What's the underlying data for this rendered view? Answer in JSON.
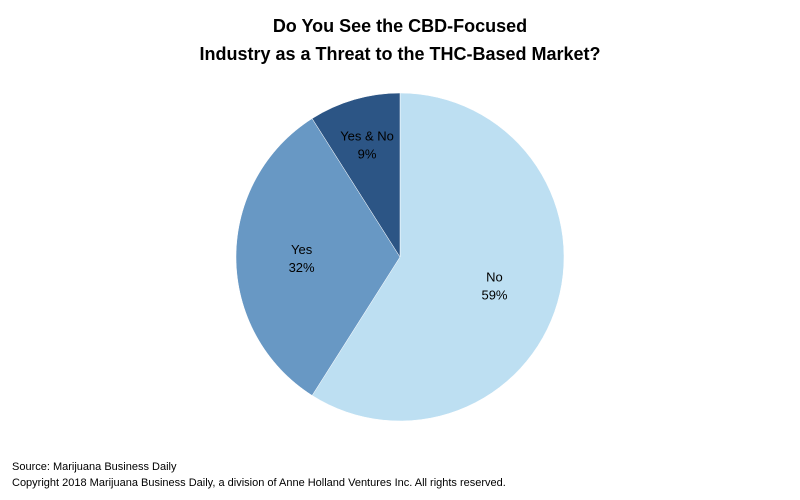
{
  "chart_data": {
    "type": "pie",
    "title": [
      "Do You See the CBD-Focused",
      "Industry as a Threat to the THC-Based Market?"
    ],
    "slices": [
      {
        "label": "No",
        "value": 59,
        "value_label": "59%",
        "color": "#bddff2"
      },
      {
        "label": "Yes",
        "value": 32,
        "value_label": "32%",
        "color": "#6898c4"
      },
      {
        "label": "Yes & No",
        "value": 9,
        "value_label": "9%",
        "color": "#2c5585"
      }
    ],
    "start": "12 o'clock",
    "direction": "clockwise"
  },
  "footer": {
    "source": "Source: Marijuana Business Daily",
    "copyright": "Copyright 2018 Marijuana Business Daily, a division of Anne Holland Ventures Inc. All rights reserved."
  }
}
